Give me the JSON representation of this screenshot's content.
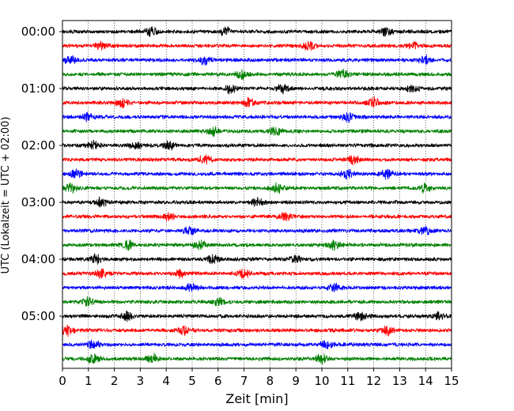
{
  "chart_data": {
    "type": "line",
    "title": "",
    "xlabel": "Zeit  [min]",
    "ylabel": "UTC (Lokalzeit = UTC + 02:00)",
    "xlim": [
      0,
      15
    ],
    "x_ticks": [
      "0",
      "1",
      "2",
      "3",
      "4",
      "5",
      "6",
      "7",
      "8",
      "9",
      "10",
      "11",
      "12",
      "13",
      "14",
      "15"
    ],
    "y_ticks": [
      {
        "label": "00:00",
        "trace_index": 0
      },
      {
        "label": "01:00",
        "trace_index": 4
      },
      {
        "label": "02:00",
        "trace_index": 8
      },
      {
        "label": "03:00",
        "trace_index": 12
      },
      {
        "label": "04:00",
        "trace_index": 16
      },
      {
        "label": "05:00",
        "trace_index": 20
      }
    ],
    "grid": "vertical-dotted",
    "trace_count": 24,
    "trace_interval_minutes": 15,
    "color_cycle": [
      "#000000",
      "#ff0000",
      "#0000ff",
      "#008000"
    ],
    "series": [
      {
        "start": "00:00",
        "color": "#000000",
        "events_min": [
          3.4,
          6.3,
          12.5
        ]
      },
      {
        "start": "00:15",
        "color": "#ff0000",
        "events_min": [
          1.5,
          9.5,
          13.5
        ]
      },
      {
        "start": "00:30",
        "color": "#0000ff",
        "events_min": [
          0.3,
          5.5,
          14.0
        ]
      },
      {
        "start": "00:45",
        "color": "#008000",
        "events_min": [
          6.9,
          10.8
        ]
      },
      {
        "start": "01:00",
        "color": "#000000",
        "events_min": [
          6.5,
          8.5,
          13.5
        ]
      },
      {
        "start": "01:15",
        "color": "#ff0000",
        "events_min": [
          2.3,
          7.2,
          12.0
        ]
      },
      {
        "start": "01:30",
        "color": "#0000ff",
        "events_min": [
          1.0,
          11.0
        ]
      },
      {
        "start": "01:45",
        "color": "#008000",
        "events_min": [
          5.8,
          8.2
        ]
      },
      {
        "start": "02:00",
        "color": "#000000",
        "events_min": [
          1.2,
          2.8,
          4.1
        ]
      },
      {
        "start": "02:15",
        "color": "#ff0000",
        "events_min": [
          5.5,
          11.2
        ]
      },
      {
        "start": "02:30",
        "color": "#0000ff",
        "events_min": [
          0.5,
          11.0,
          12.5
        ]
      },
      {
        "start": "02:45",
        "color": "#008000",
        "events_min": [
          0.3,
          8.3,
          14.0
        ]
      },
      {
        "start": "03:00",
        "color": "#000000",
        "events_min": [
          1.5,
          7.5
        ]
      },
      {
        "start": "03:15",
        "color": "#ff0000",
        "events_min": [
          4.1,
          8.6
        ]
      },
      {
        "start": "03:30",
        "color": "#0000ff",
        "events_min": [
          4.9,
          14.0
        ]
      },
      {
        "start": "03:45",
        "color": "#008000",
        "events_min": [
          2.5,
          5.3,
          10.5
        ]
      },
      {
        "start": "04:00",
        "color": "#000000",
        "events_min": [
          1.3,
          5.8,
          9.0
        ]
      },
      {
        "start": "04:15",
        "color": "#ff0000",
        "events_min": [
          1.5,
          4.5,
          7.0
        ]
      },
      {
        "start": "04:30",
        "color": "#0000ff",
        "events_min": [
          5.0,
          10.5
        ]
      },
      {
        "start": "04:45",
        "color": "#008000",
        "events_min": [
          1.0,
          6.0
        ]
      },
      {
        "start": "05:00",
        "color": "#000000",
        "events_min": [
          2.5,
          11.5,
          14.5
        ]
      },
      {
        "start": "05:15",
        "color": "#ff0000",
        "events_min": [
          0.2,
          4.7,
          12.5
        ]
      },
      {
        "start": "05:30",
        "color": "#0000ff",
        "events_min": [
          1.2,
          10.2
        ]
      },
      {
        "start": "05:45",
        "color": "#008000",
        "events_min": [
          1.2,
          3.5,
          10.0
        ]
      }
    ]
  }
}
